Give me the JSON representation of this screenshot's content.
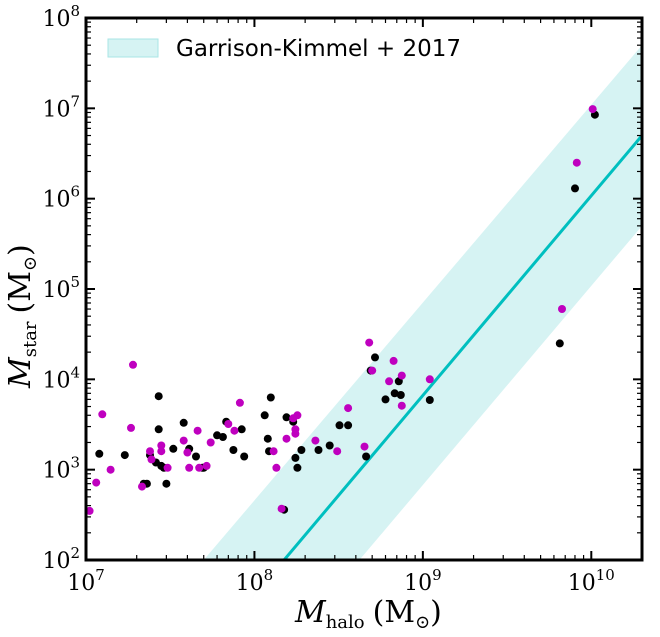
{
  "chart_data": {
    "type": "scatter",
    "x_scale": "log",
    "y_scale": "log",
    "xlim": [
      10000000,
      20000000000
    ],
    "ylim": [
      100,
      100000000
    ],
    "xlabel": {
      "main": "M",
      "sub": "halo",
      "unit_open": "(M",
      "unit_sub": "⊙",
      "unit_close": ")"
    },
    "ylabel": {
      "main": "M",
      "sub": "star",
      "unit_open": "(M",
      "unit_sub": "⊙",
      "unit_close": ")"
    },
    "x_ticks": [
      {
        "value": 10000000,
        "base": "10",
        "exp": "7"
      },
      {
        "value": 100000000,
        "base": "10",
        "exp": "8"
      },
      {
        "value": 1000000000,
        "base": "10",
        "exp": "9"
      },
      {
        "value": 10000000000,
        "base": "10",
        "exp": "10"
      }
    ],
    "y_ticks": [
      {
        "value": 100,
        "base": "10",
        "exp": "2"
      },
      {
        "value": 1000,
        "base": "10",
        "exp": "3"
      },
      {
        "value": 10000,
        "base": "10",
        "exp": "4"
      },
      {
        "value": 100000,
        "base": "10",
        "exp": "5"
      },
      {
        "value": 1000000,
        "base": "10",
        "exp": "6"
      },
      {
        "value": 10000000,
        "base": "10",
        "exp": "7"
      },
      {
        "value": 100000000,
        "base": "10",
        "exp": "8"
      }
    ],
    "legend": {
      "position": "top-left",
      "label": "Garrison-Kimmel + 2017"
    },
    "relation": {
      "color": "#00bfbf",
      "band_color": "#d6f3f3",
      "line": [
        [
          150000000.0,
          100
        ],
        [
          20000000000.0,
          5000000
        ]
      ],
      "band_upper": [
        [
          50000000.0,
          100
        ],
        [
          20000000000.0,
          50000000
        ]
      ],
      "band_lower": [
        [
          420000000.0,
          100
        ],
        [
          20000000000.0,
          500000
        ]
      ]
    },
    "series": [
      {
        "color": "#000000",
        "points": [
          [
            12000000.0,
            1500
          ],
          [
            17000000.0,
            1450
          ],
          [
            22000000.0,
            700
          ],
          [
            23000000.0,
            700
          ],
          [
            24000000.0,
            1450
          ],
          [
            26000000.0,
            1200
          ],
          [
            27000000.0,
            6500
          ],
          [
            27000000.0,
            2800
          ],
          [
            28000000.0,
            1100
          ],
          [
            29000000.0,
            1050
          ],
          [
            30000000.0,
            700
          ],
          [
            33000000.0,
            1700
          ],
          [
            38000000.0,
            3300
          ],
          [
            41000000.0,
            1700
          ],
          [
            45000000.0,
            1400
          ],
          [
            49000000.0,
            1050
          ],
          [
            50000000.0,
            1050
          ],
          [
            60000000.0,
            2400
          ],
          [
            65000000.0,
            2300
          ],
          [
            68000000.0,
            3400
          ],
          [
            75000000.0,
            1650
          ],
          [
            84000000.0,
            2800
          ],
          [
            87000000.0,
            1400
          ],
          [
            115000000.0,
            4000
          ],
          [
            120000000.0,
            2200
          ],
          [
            122000000.0,
            1600
          ],
          [
            125000000.0,
            6300
          ],
          [
            150000000.0,
            360
          ],
          [
            155000000.0,
            3800
          ],
          [
            170000000.0,
            3400
          ],
          [
            175000000.0,
            1350
          ],
          [
            180000000.0,
            1050
          ],
          [
            190000000.0,
            1650
          ],
          [
            240000000.0,
            1650
          ],
          [
            280000000.0,
            1850
          ],
          [
            320000000.0,
            3100
          ],
          [
            360000000.0,
            3100
          ],
          [
            460000000.0,
            1400
          ],
          [
            490000000.0,
            12500
          ],
          [
            520000000.0,
            17500
          ],
          [
            600000000.0,
            6000
          ],
          [
            680000000.0,
            7000
          ],
          [
            720000000.0,
            9500
          ],
          [
            740000000.0,
            6700
          ],
          [
            1100000000.0,
            5900
          ],
          [
            6500000000.0,
            25000
          ],
          [
            8000000000.0,
            1300000
          ],
          [
            10500000000.0,
            8500000
          ]
        ]
      },
      {
        "color": "#bf00bf",
        "points": [
          [
            10500000.0,
            350
          ],
          [
            11500000.0,
            720
          ],
          [
            12500000.0,
            4100
          ],
          [
            14000000.0,
            1000
          ],
          [
            18500000.0,
            2900
          ],
          [
            19000000.0,
            14500
          ],
          [
            21500000.0,
            650
          ],
          [
            24000000.0,
            1600
          ],
          [
            24500000.0,
            1300
          ],
          [
            28000000.0,
            1850
          ],
          [
            28000000.0,
            1600
          ],
          [
            30500000.0,
            1050
          ],
          [
            38000000.0,
            2100
          ],
          [
            40000000.0,
            1550
          ],
          [
            41000000.0,
            1050
          ],
          [
            46000000.0,
            2700
          ],
          [
            47000000.0,
            1050
          ],
          [
            52000000.0,
            1100
          ],
          [
            55000000.0,
            2000
          ],
          [
            70000000.0,
            3200
          ],
          [
            76000000.0,
            2700
          ],
          [
            82000000.0,
            5500
          ],
          [
            130000000.0,
            1600
          ],
          [
            135000000.0,
            1050
          ],
          [
            145000000.0,
            370
          ],
          [
            155000000.0,
            2200
          ],
          [
            170000000.0,
            3700
          ],
          [
            175000000.0,
            2800
          ],
          [
            175000000.0,
            2500
          ],
          [
            180000000.0,
            4000
          ],
          [
            230000000.0,
            2100
          ],
          [
            310000000.0,
            1600
          ],
          [
            360000000.0,
            4800
          ],
          [
            450000000.0,
            1800
          ],
          [
            480000000.0,
            25500
          ],
          [
            500000000.0,
            12500
          ],
          [
            630000000.0,
            9500
          ],
          [
            670000000.0,
            16000
          ],
          [
            750000000.0,
            11000
          ],
          [
            750000000.0,
            5100
          ],
          [
            1100000000.0,
            10000
          ],
          [
            6700000000.0,
            60000
          ],
          [
            8200000000.0,
            2500000
          ],
          [
            10200000000.0,
            9800000
          ]
        ]
      }
    ]
  }
}
